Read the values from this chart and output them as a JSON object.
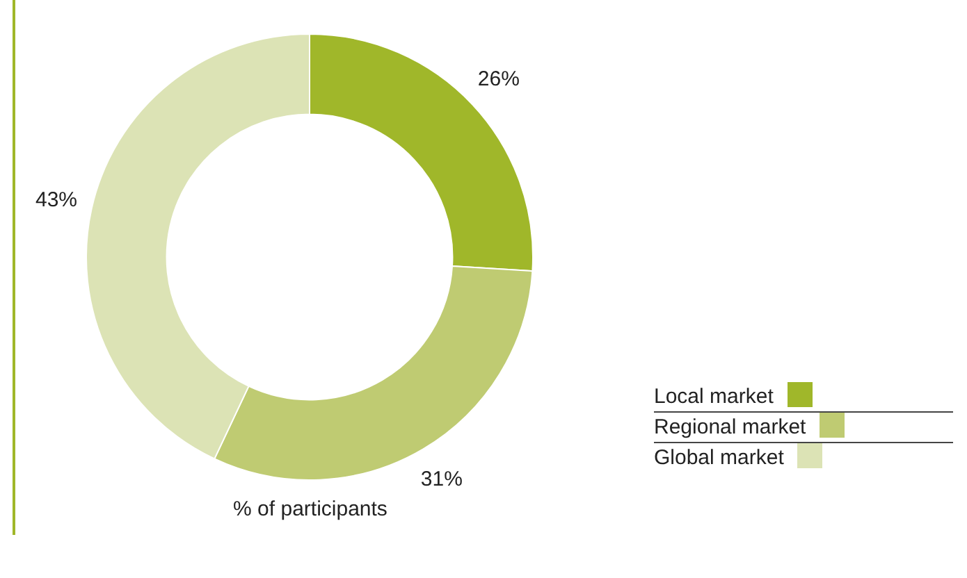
{
  "chart_data": {
    "type": "donut",
    "categories": [
      "Local market",
      "Regional market",
      "Global market"
    ],
    "values": [
      26,
      31,
      43
    ],
    "value_labels": [
      "26%",
      "31%",
      "43%"
    ],
    "colors": [
      "#a0b72a",
      "#bfcb72",
      "#dce3b5"
    ],
    "legend": "bottom right",
    "annotations": [
      "% of participants"
    ]
  }
}
